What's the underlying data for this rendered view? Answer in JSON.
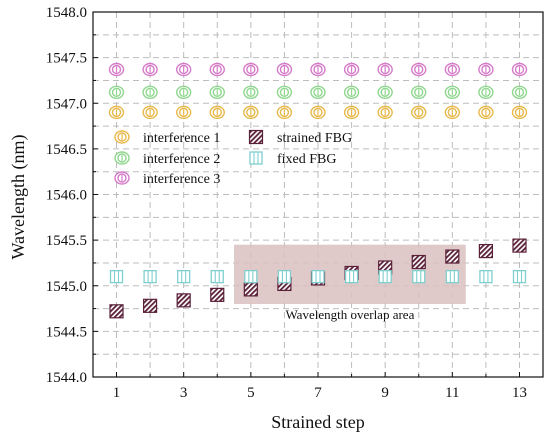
{
  "chart_data": {
    "type": "scatter",
    "xlabel": "Strained step",
    "ylabel": "Wavelength (nm)",
    "xlim": [
      0.3,
      13.7
    ],
    "ylim": [
      1544.0,
      1548.0
    ],
    "x_ticks": [
      1,
      3,
      5,
      7,
      9,
      11,
      13
    ],
    "x_tick_labels": [
      "1",
      "3",
      "5",
      "7",
      "9",
      "11",
      "13"
    ],
    "y_ticks": [
      1544.0,
      1544.5,
      1545.0,
      1545.5,
      1546.0,
      1546.5,
      1547.0,
      1547.5,
      1548.0
    ],
    "y_tick_labels": [
      "1544.0",
      "1544.5",
      "1545.0",
      "1545.5",
      "1546.0",
      "1546.5",
      "1547.0",
      "1547.5",
      "1548.0"
    ],
    "grid": true,
    "legend_position": "middle-left",
    "x": [
      1,
      2,
      3,
      4,
      5,
      6,
      7,
      8,
      9,
      10,
      11,
      12,
      13
    ],
    "series": [
      {
        "name": "interference 1",
        "marker": "double-circle",
        "color": "#e8b84a",
        "values": [
          1546.9,
          1546.9,
          1546.9,
          1546.9,
          1546.9,
          1546.9,
          1546.9,
          1546.9,
          1546.9,
          1546.9,
          1546.9,
          1546.9,
          1546.9
        ]
      },
      {
        "name": "interference 2",
        "marker": "double-circle",
        "color": "#8fd68f",
        "values": [
          1547.12,
          1547.12,
          1547.12,
          1547.12,
          1547.12,
          1547.12,
          1547.12,
          1547.12,
          1547.12,
          1547.12,
          1547.12,
          1547.12,
          1547.12
        ]
      },
      {
        "name": "interference 3",
        "marker": "double-circle",
        "color": "#d67ac8",
        "values": [
          1547.37,
          1547.37,
          1547.37,
          1547.37,
          1547.37,
          1547.37,
          1547.37,
          1547.37,
          1547.37,
          1547.37,
          1547.37,
          1547.37,
          1547.37
        ]
      },
      {
        "name": "strained FBG",
        "marker": "hatched-square",
        "color": "#5a2038",
        "values": [
          1544.72,
          1544.78,
          1544.84,
          1544.9,
          1544.96,
          1545.02,
          1545.08,
          1545.14,
          1545.2,
          1545.26,
          1545.32,
          1545.38,
          1545.44
        ]
      },
      {
        "name": "fixed FBG",
        "marker": "square-bars",
        "color": "#7fcfcf",
        "values": [
          1545.1,
          1545.1,
          1545.1,
          1545.1,
          1545.1,
          1545.1,
          1545.1,
          1545.1,
          1545.1,
          1545.1,
          1545.1,
          1545.1,
          1545.1
        ]
      }
    ],
    "annotations": [
      {
        "text": "Wavelength overlap area",
        "x_range": [
          4.5,
          11.4
        ],
        "y_range": [
          1544.8,
          1545.45
        ],
        "fill": "#d9bfbf"
      }
    ]
  }
}
